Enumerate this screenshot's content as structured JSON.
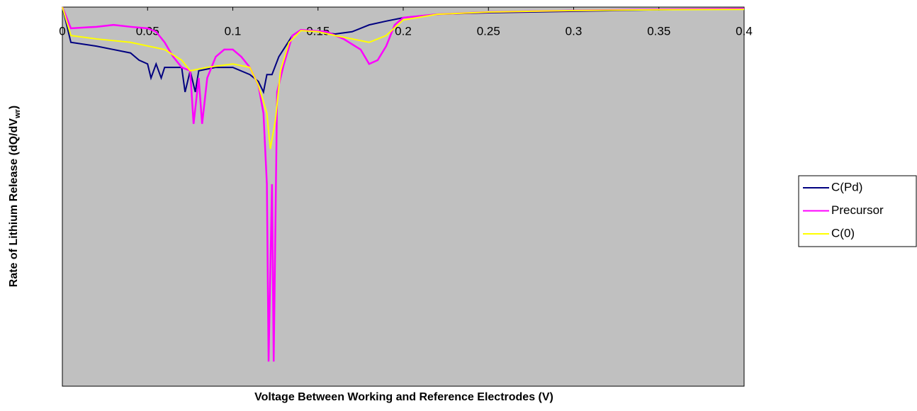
{
  "chart_data": {
    "type": "line",
    "x_label": "Voltage Between Working and Reference Electrodes (V)",
    "y_label": [
      "Rate of Lithium Release (dQ/dV",
      "wr",
      ")"
    ],
    "xlim": [
      0,
      0.4
    ],
    "xticks": [
      0,
      0.05,
      0.1,
      0.15,
      0.2,
      0.25,
      0.3,
      0.35,
      0.4
    ],
    "ylim": [
      -1,
      0
    ],
    "legend": "right",
    "series": [
      {
        "name": "C(Pd)",
        "color": "#000080",
        "x": [
          0,
          0.005,
          0.02,
          0.03,
          0.04,
          0.045,
          0.05,
          0.052,
          0.055,
          0.058,
          0.06,
          0.07,
          0.072,
          0.075,
          0.078,
          0.08,
          0.09,
          0.1,
          0.11,
          0.115,
          0.118,
          0.12,
          0.123,
          0.127,
          0.135,
          0.14,
          0.15,
          0.16,
          0.17,
          0.18,
          0.19,
          0.2,
          0.22,
          0.25,
          0.3,
          0.35,
          0.4
        ],
        "values": [
          0,
          -0.093,
          -0.103,
          -0.112,
          -0.121,
          -0.14,
          -0.15,
          -0.187,
          -0.15,
          -0.187,
          -0.159,
          -0.159,
          -0.224,
          -0.168,
          -0.224,
          -0.168,
          -0.159,
          -0.159,
          -0.178,
          -0.196,
          -0.224,
          -0.178,
          -0.178,
          -0.131,
          -0.075,
          -0.06,
          -0.065,
          -0.071,
          -0.065,
          -0.047,
          -0.037,
          -0.028,
          -0.019,
          -0.015,
          -0.011,
          -0.007,
          -0.004
        ]
      },
      {
        "name": "Precursor",
        "color": "#ff00ff",
        "x": [
          0,
          0.005,
          0.02,
          0.03,
          0.04,
          0.05,
          0.055,
          0.06,
          0.065,
          0.07,
          0.075,
          0.077,
          0.08,
          0.082,
          0.085,
          0.09,
          0.095,
          0.1,
          0.105,
          0.11,
          0.115,
          0.118,
          0.12,
          0.121,
          0.123,
          0.124,
          0.126,
          0.13,
          0.135,
          0.14,
          0.155,
          0.165,
          0.175,
          0.18,
          0.185,
          0.19,
          0.195,
          0.2,
          0.22,
          0.25,
          0.3,
          0.35,
          0.4
        ],
        "values": [
          0,
          -0.056,
          -0.052,
          -0.047,
          -0.052,
          -0.056,
          -0.065,
          -0.093,
          -0.131,
          -0.159,
          -0.168,
          -0.308,
          -0.187,
          -0.308,
          -0.187,
          -0.131,
          -0.112,
          -0.112,
          -0.131,
          -0.159,
          -0.206,
          -0.28,
          -0.467,
          -0.935,
          -0.467,
          -0.935,
          -0.224,
          -0.15,
          -0.075,
          -0.06,
          -0.065,
          -0.084,
          -0.112,
          -0.15,
          -0.14,
          -0.103,
          -0.047,
          -0.028,
          -0.019,
          -0.013,
          -0.009,
          -0.006,
          -0.004
        ]
      },
      {
        "name": "C(0)",
        "color": "#ffff00",
        "x": [
          0,
          0.005,
          0.02,
          0.04,
          0.06,
          0.07,
          0.075,
          0.085,
          0.1,
          0.11,
          0.115,
          0.12,
          0.122,
          0.125,
          0.128,
          0.133,
          0.14,
          0.15,
          0.16,
          0.17,
          0.18,
          0.19,
          0.2,
          0.22,
          0.25,
          0.3,
          0.35,
          0.4
        ],
        "values": [
          0,
          -0.075,
          -0.084,
          -0.093,
          -0.112,
          -0.14,
          -0.168,
          -0.159,
          -0.15,
          -0.159,
          -0.206,
          -0.28,
          -0.374,
          -0.299,
          -0.168,
          -0.093,
          -0.062,
          -0.065,
          -0.075,
          -0.084,
          -0.093,
          -0.075,
          -0.034,
          -0.019,
          -0.013,
          -0.009,
          -0.007,
          -0.006
        ]
      }
    ]
  }
}
